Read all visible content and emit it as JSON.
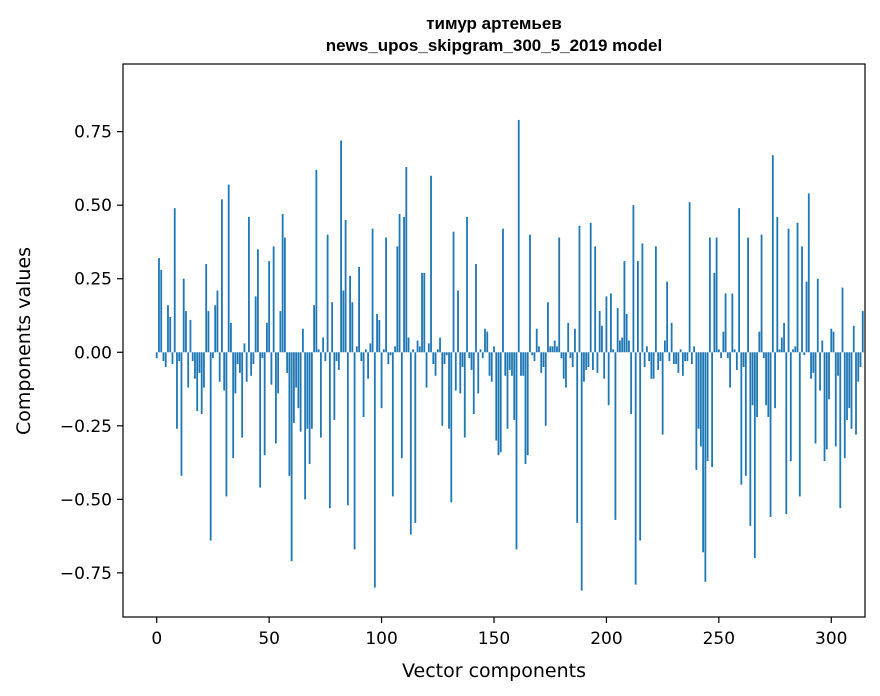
{
  "chart_data": {
    "type": "bar",
    "title_line1": "тимур артемьев",
    "title_line2": "news_upos_skipgram_300_5_2019 model",
    "xlabel": "Vector components",
    "ylabel": "Components values",
    "xlim": [
      -15,
      315
    ],
    "ylim": [
      -0.9,
      0.98
    ],
    "xticks": [
      0,
      50,
      100,
      150,
      200,
      250,
      300
    ],
    "xtick_labels": [
      "0",
      "50",
      "100",
      "150",
      "200",
      "250",
      "300"
    ],
    "yticks": [
      -0.75,
      -0.5,
      -0.25,
      0.0,
      0.25,
      0.5,
      0.75
    ],
    "ytick_labels": [
      "−0.75",
      "−0.50",
      "−0.25",
      "0.00",
      "0.25",
      "0.50",
      "0.75"
    ],
    "bar_color": "#1f77b4",
    "values": [
      -0.02,
      0.32,
      0.28,
      -0.03,
      -0.05,
      0.16,
      0.12,
      -0.04,
      0.49,
      -0.26,
      -0.03,
      -0.42,
      0.25,
      0.14,
      -0.12,
      0.11,
      -0.03,
      -0.09,
      -0.2,
      -0.07,
      -0.21,
      -0.12,
      0.3,
      0.14,
      -0.64,
      -0.02,
      0.16,
      0.21,
      -0.1,
      0.52,
      -0.13,
      -0.49,
      0.57,
      0.1,
      -0.36,
      -0.14,
      -0.04,
      -0.07,
      -0.29,
      0.03,
      -0.1,
      0.46,
      -0.08,
      -0.04,
      0.19,
      0.35,
      -0.46,
      -0.02,
      -0.35,
      0.1,
      0.31,
      -0.11,
      0.36,
      -0.31,
      -0.14,
      0.14,
      0.47,
      0.39,
      -0.07,
      -0.42,
      -0.71,
      -0.24,
      -0.12,
      -0.19,
      -0.27,
      0.08,
      -0.5,
      -0.26,
      -0.38,
      -0.26,
      0.16,
      0.62,
      0.01,
      -0.29,
      0.05,
      -0.03,
      0.4,
      -0.53,
      0.17,
      -0.23,
      -0.03,
      -0.06,
      0.72,
      0.21,
      0.45,
      -0.52,
      0.26,
      0.17,
      -0.67,
      0.02,
      0.29,
      -0.03,
      -0.22,
      0.01,
      -0.09,
      0.03,
      0.42,
      -0.8,
      0.13,
      0.11,
      -0.19,
      0.01,
      0.39,
      -0.04,
      -0.01,
      -0.49,
      0.02,
      0.36,
      0.47,
      -0.36,
      0.46,
      0.63,
      0.05,
      -0.62,
      0.01,
      -0.58,
      0.04,
      0.02,
      0.27,
      0.27,
      -0.12,
      0.03,
      0.6,
      -0.04,
      -0.08,
      0.01,
      0.05,
      -0.25,
      -0.04,
      -0.01,
      -0.26,
      -0.51,
      0.41,
      -0.13,
      0.21,
      -0.14,
      -0.05,
      -0.29,
      0.46,
      -0.02,
      -0.06,
      -0.21,
      0.3,
      -0.14,
      0.01,
      -0.02,
      0.08,
      0.07,
      -0.08,
      -0.1,
      0.02,
      -0.3,
      -0.35,
      -0.34,
      0.42,
      -0.08,
      -0.26,
      -0.06,
      -0.08,
      -0.23,
      -0.67,
      0.79,
      -0.08,
      -0.08,
      -0.38,
      -0.35,
      0.4,
      -0.01,
      -0.03,
      0.08,
      0.02,
      -0.07,
      -0.05,
      -0.25,
      0.17,
      0.02,
      0.02,
      0.04,
      0.02,
      0.39,
      -0.02,
      -0.09,
      -0.12,
      0.1,
      -0.02,
      -0.05,
      0.08,
      -0.58,
      0.43,
      -0.81,
      -0.1,
      -0.06,
      -0.05,
      0.44,
      -0.06,
      0.36,
      -0.07,
      0.14,
      0.09,
      -0.09,
      0.19,
      -0.18,
      0.2,
      0.01,
      -0.57,
      0.15,
      0.04,
      0.05,
      0.31,
      0.13,
      0.04,
      -0.21,
      0.5,
      -0.79,
      0.31,
      -0.64,
      0.37,
      -0.05,
      0.02,
      -0.03,
      -0.09,
      -0.09,
      0.36,
      -0.06,
      -0.03,
      -0.28,
      0.04,
      0.24,
      -0.03,
      0.1,
      -0.04,
      -0.04,
      -0.07,
      0.01,
      -0.08,
      -0.03,
      -0.03,
      0.51,
      -0.04,
      0.02,
      -0.4,
      -0.26,
      -0.32,
      -0.68,
      -0.78,
      -0.37,
      0.39,
      -0.39,
      0.27,
      0.39,
      0.01,
      -0.02,
      0.07,
      0.2,
      -0.02,
      -0.12,
      0.2,
      0.01,
      -0.06,
      0.49,
      -0.45,
      -0.05,
      -0.42,
      0.39,
      -0.59,
      -0.18,
      -0.7,
      -0.22,
      0.07,
      0.4,
      -0.02,
      -0.18,
      -0.22,
      -0.56,
      0.67,
      -0.19,
      0.46,
      0.01,
      0.05,
      0.1,
      -0.55,
      0.42,
      -0.37,
      0.01,
      0.02,
      0.44,
      -0.49,
      0.36,
      -0.01,
      0.24,
      0.54,
      -0.09,
      -0.07,
      -0.31,
      0.25,
      -0.13,
      0.04,
      -0.37,
      -0.33,
      -0.16,
      0.08,
      0.07,
      -0.32,
      -0.08,
      -0.53,
      0.22,
      -0.36,
      -0.23,
      -0.19,
      -0.26,
      0.09,
      -0.28,
      -0.1,
      -0.05,
      0.14
    ]
  }
}
